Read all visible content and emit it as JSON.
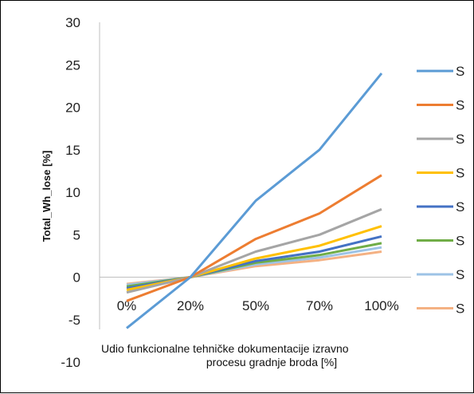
{
  "chart_data": {
    "type": "line",
    "title": "",
    "xlabel_line1": "Udio funkcionalne tehničke dokumentacije izravno",
    "xlabel_line2": "procesu gradnje broda [%]",
    "ylabel": "Total_Wh_lose [%]",
    "categories": [
      "0%",
      "20%",
      "50%",
      "70%",
      "100%"
    ],
    "ylim": [
      -10,
      30
    ],
    "yticks": [
      30,
      25,
      20,
      15,
      10,
      5,
      0,
      -5,
      -10
    ],
    "grid": false,
    "legend_position": "right",
    "series": [
      {
        "name": "S",
        "color": "#5b9bd5",
        "values": [
          -6,
          0,
          9,
          15,
          24
        ]
      },
      {
        "name": "S",
        "color": "#ed7d31",
        "values": [
          -2.8,
          0,
          4.5,
          7.5,
          12
        ]
      },
      {
        "name": "S",
        "color": "#a5a5a5",
        "values": [
          -1.8,
          0,
          3.0,
          5.0,
          8.0
        ]
      },
      {
        "name": "S",
        "color": "#ffc000",
        "values": [
          -1.5,
          0,
          2.2,
          3.7,
          6.0
        ]
      },
      {
        "name": "S",
        "color": "#4472c4",
        "values": [
          -1.3,
          0,
          1.9,
          3.0,
          4.8
        ]
      },
      {
        "name": "S",
        "color": "#70ad47",
        "values": [
          -1.1,
          0,
          1.7,
          2.6,
          4.0
        ]
      },
      {
        "name": "S",
        "color": "#9dc3e6",
        "values": [
          -0.9,
          0,
          1.5,
          2.3,
          3.5
        ]
      },
      {
        "name": "S",
        "color": "#f4b183",
        "values": [
          -0.8,
          0,
          1.3,
          2.0,
          3.0
        ]
      }
    ]
  }
}
